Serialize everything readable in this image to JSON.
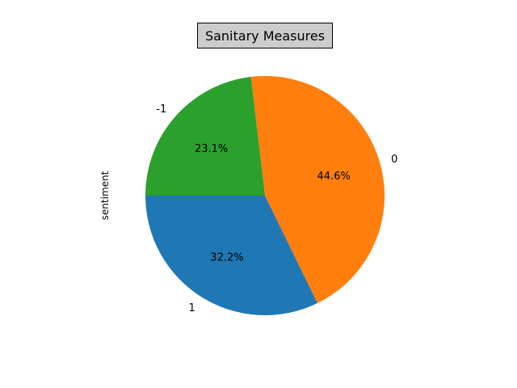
{
  "chart_data": {
    "type": "pie",
    "title": "Sanitary Measures",
    "ylabel": "sentiment",
    "slices": [
      {
        "label": "1",
        "value": 32.2,
        "pct_label": "32.2%",
        "color": "#1f77b4"
      },
      {
        "label": "0",
        "value": 44.6,
        "pct_label": "44.6%",
        "color": "#ff7f0e"
      },
      {
        "label": "-1",
        "value": 23.1,
        "pct_label": "23.1%",
        "color": "#2ca02c"
      }
    ],
    "start_angle": 180,
    "direction": "counterclockwise"
  }
}
